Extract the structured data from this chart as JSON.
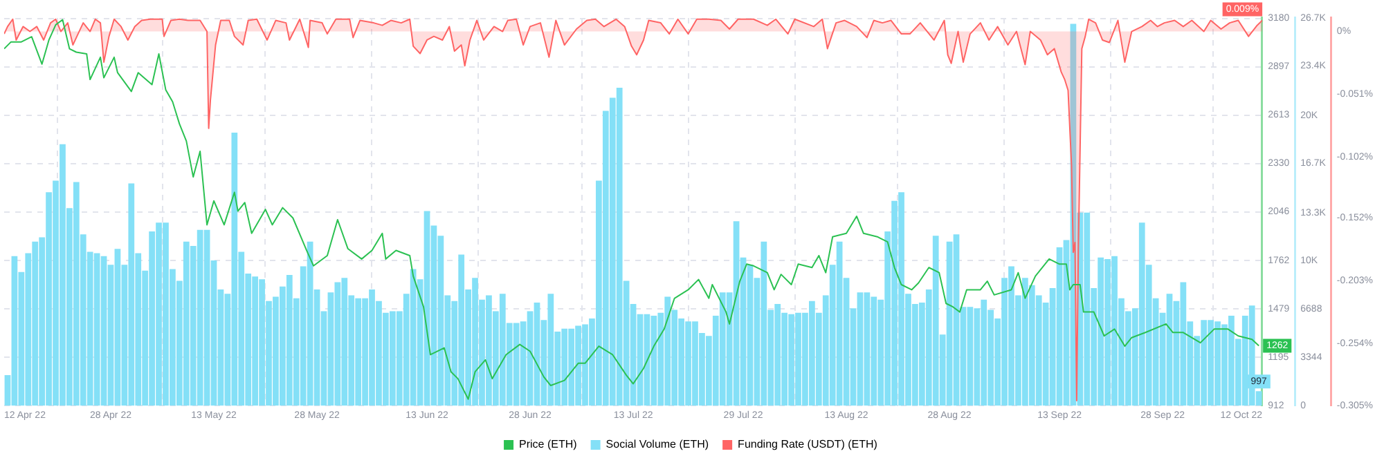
{
  "chart_data": {
    "type": "bar",
    "x": [
      "2022-04-13",
      "2022-04-14",
      "2022-04-15",
      "2022-04-16",
      "2022-04-17",
      "2022-04-18",
      "2022-04-19",
      "2022-04-20",
      "2022-04-21",
      "2022-04-22",
      "2022-04-23",
      "2022-04-24",
      "2022-04-25",
      "2022-04-26",
      "2022-04-27",
      "2022-04-28",
      "2022-04-29",
      "2022-04-30",
      "2022-05-01",
      "2022-05-02",
      "2022-05-03",
      "2022-05-04",
      "2022-05-05",
      "2022-05-06",
      "2022-05-07",
      "2022-05-08",
      "2022-05-09",
      "2022-05-10",
      "2022-05-11",
      "2022-05-12",
      "2022-05-13",
      "2022-05-14",
      "2022-05-15",
      "2022-05-16",
      "2022-05-17",
      "2022-05-18",
      "2022-05-19",
      "2022-05-20",
      "2022-05-21",
      "2022-05-22",
      "2022-05-23",
      "2022-05-24",
      "2022-05-25",
      "2022-05-26",
      "2022-05-27",
      "2022-05-28",
      "2022-05-29",
      "2022-05-30",
      "2022-05-31",
      "2022-06-01",
      "2022-06-02",
      "2022-06-03",
      "2022-06-04",
      "2022-06-05",
      "2022-06-06",
      "2022-06-07",
      "2022-06-08",
      "2022-06-09",
      "2022-06-10",
      "2022-06-11",
      "2022-06-12",
      "2022-06-13",
      "2022-06-14",
      "2022-06-15",
      "2022-06-16",
      "2022-06-17",
      "2022-06-18",
      "2022-06-19",
      "2022-06-20",
      "2022-06-21",
      "2022-06-22",
      "2022-06-23",
      "2022-06-24",
      "2022-06-25",
      "2022-06-26",
      "2022-06-27",
      "2022-06-28",
      "2022-06-29",
      "2022-06-30",
      "2022-07-01",
      "2022-07-02",
      "2022-07-03",
      "2022-07-04",
      "2022-07-05",
      "2022-07-06",
      "2022-07-07",
      "2022-07-08",
      "2022-07-09",
      "2022-07-10",
      "2022-07-11",
      "2022-07-12",
      "2022-07-13",
      "2022-07-14",
      "2022-07-15",
      "2022-07-16",
      "2022-07-17",
      "2022-07-18",
      "2022-07-19",
      "2022-07-20",
      "2022-07-21",
      "2022-07-22",
      "2022-07-23",
      "2022-07-24",
      "2022-07-25",
      "2022-07-26",
      "2022-07-27",
      "2022-07-28",
      "2022-07-29",
      "2022-07-30",
      "2022-07-31",
      "2022-08-01",
      "2022-08-02",
      "2022-08-03",
      "2022-08-04",
      "2022-08-05",
      "2022-08-06",
      "2022-08-07",
      "2022-08-08",
      "2022-08-09",
      "2022-08-10",
      "2022-08-11",
      "2022-08-12",
      "2022-08-13",
      "2022-08-14",
      "2022-08-15",
      "2022-08-16",
      "2022-08-17",
      "2022-08-18",
      "2022-08-19",
      "2022-08-20",
      "2022-08-21",
      "2022-08-22",
      "2022-08-23",
      "2022-08-24",
      "2022-08-25",
      "2022-08-26",
      "2022-08-27",
      "2022-08-28",
      "2022-08-29",
      "2022-08-30",
      "2022-08-31",
      "2022-09-01",
      "2022-09-02",
      "2022-09-03",
      "2022-09-04",
      "2022-09-05",
      "2022-09-06",
      "2022-09-07",
      "2022-09-08",
      "2022-09-09",
      "2022-09-10",
      "2022-09-11",
      "2022-09-12",
      "2022-09-13",
      "2022-09-14",
      "2022-09-15",
      "2022-09-16",
      "2022-09-17",
      "2022-09-18",
      "2022-09-19",
      "2022-09-20",
      "2022-09-21",
      "2022-09-22",
      "2022-09-23",
      "2022-09-24",
      "2022-09-25",
      "2022-09-26",
      "2022-09-27",
      "2022-09-28",
      "2022-09-29",
      "2022-09-30",
      "2022-10-01",
      "2022-10-02",
      "2022-10-03",
      "2022-10-04",
      "2022-10-05",
      "2022-10-06",
      "2022-10-07",
      "2022-10-08",
      "2022-10-09",
      "2022-10-10",
      "2022-10-11",
      "2022-10-12"
    ],
    "series": [
      {
        "name": "Price (ETH)",
        "type": "line",
        "color": "#2bc152",
        "x": [
          "2022-04-12T12:00",
          "2022-04-13T12:00",
          "2022-04-15",
          "2022-04-16T12:00",
          "2022-04-18",
          "2022-04-19",
          "2022-04-20",
          "2022-04-21",
          "2022-04-22",
          "2022-04-23",
          "2022-04-24T12:00",
          "2022-04-25",
          "2022-04-26T12:00",
          "2022-04-27",
          "2022-04-28T12:00",
          "2022-04-29",
          "2022-05-01",
          "2022-05-02",
          "2022-05-04",
          "2022-05-05",
          "2022-05-06",
          "2022-05-07",
          "2022-05-08",
          "2022-05-09",
          "2022-05-10",
          "2022-05-11",
          "2022-05-12",
          "2022-05-13",
          "2022-05-14T12:00",
          "2022-05-16",
          "2022-05-16T12:00",
          "2022-05-17T12:00",
          "2022-05-18T12:00",
          "2022-05-20T12:00",
          "2022-05-21T12:00",
          "2022-05-23",
          "2022-05-24T12:00",
          "2022-05-26T12:00",
          "2022-05-27T12:00",
          "2022-05-29T12:00",
          "2022-05-31",
          "2022-06-01T12:00",
          "2022-06-03T12:00",
          "2022-06-05",
          "2022-06-06T12:00",
          "2022-06-07",
          "2022-06-08T12:00",
          "2022-06-10T12:00",
          "2022-06-11",
          "2022-06-12T12:00",
          "2022-06-13T12:00",
          "2022-06-15T12:00",
          "2022-06-16T12:00",
          "2022-06-17T12:00",
          "2022-06-19",
          "2022-06-20",
          "2022-06-21T12:00",
          "2022-06-22T12:00",
          "2022-06-24T12:00",
          "2022-06-26T12:00",
          "2022-06-28",
          "2022-06-30",
          "2022-07-01",
          "2022-07-03",
          "2022-07-05",
          "2022-07-06",
          "2022-07-08",
          "2022-07-10",
          "2022-07-12",
          "2022-07-13",
          "2022-07-14T12:00",
          "2022-07-16",
          "2022-07-17T12:00",
          "2022-07-19",
          "2022-07-21",
          "2022-07-22T12:00",
          "2022-07-24",
          "2022-07-24T12:00",
          "2022-07-26T12:00",
          "2022-07-27",
          "2022-07-28T12:00",
          "2022-07-29T12:00",
          "2022-07-30T12:00",
          "2022-08-01T12:00",
          "2022-08-02T12:00",
          "2022-08-03T12:00",
          "2022-08-05",
          "2022-08-06",
          "2022-08-08",
          "2022-08-09",
          "2022-08-10",
          "2022-08-11",
          "2022-08-13",
          "2022-08-14T12:00",
          "2022-08-15T12:00",
          "2022-08-17T12:00",
          "2022-08-19",
          "2022-08-20",
          "2022-08-21",
          "2022-08-22T12:00",
          "2022-08-23T12:00",
          "2022-08-25",
          "2022-08-26T12:00",
          "2022-08-27T12:00",
          "2022-08-28T12:00",
          "2022-08-29T12:00",
          "2022-08-30T12:00",
          "2022-09-01T12:00",
          "2022-09-02T12:00",
          "2022-09-03T12:00",
          "2022-09-06",
          "2022-09-07",
          "2022-09-08",
          "2022-09-09T12:00",
          "2022-09-11T12:00",
          "2022-09-13",
          "2022-09-14",
          "2022-09-14T12:00",
          "2022-09-15",
          "2022-09-16",
          "2022-09-16T12:00",
          "2022-09-18",
          "2022-09-19T12:00",
          "2022-09-21",
          "2022-09-22T12:00",
          "2022-09-23T12:00",
          "2022-09-25T12:00",
          "2022-09-28T12:00",
          "2022-09-29T12:00",
          "2022-10-01",
          "2022-10-03T12:00",
          "2022-10-05T12:00",
          "2022-10-07T12:00",
          "2022-10-09",
          "2022-10-11",
          "2022-10-12"
        ],
        "values": [
          3000,
          3040,
          3040,
          3070,
          2910,
          3050,
          3140,
          3170,
          3000,
          2980,
          2970,
          2820,
          2950,
          2830,
          2950,
          2860,
          2750,
          2860,
          2790,
          2970,
          2760,
          2690,
          2560,
          2460,
          2250,
          2400,
          1970,
          2110,
          1970,
          2160,
          2050,
          2100,
          1920,
          2060,
          1970,
          2070,
          2010,
          1820,
          1730,
          1790,
          2000,
          1830,
          1770,
          1820,
          1920,
          1770,
          1820,
          1790,
          1670,
          1490,
          1210,
          1250,
          1110,
          1070,
          950,
          1110,
          1180,
          1070,
          1210,
          1270,
          1230,
          1080,
          1030,
          1060,
          1160,
          1160,
          1260,
          1210,
          1090,
          1040,
          1130,
          1260,
          1360,
          1540,
          1590,
          1650,
          1540,
          1620,
          1460,
          1390,
          1640,
          1740,
          1730,
          1690,
          1590,
          1680,
          1620,
          1740,
          1720,
          1790,
          1690,
          1900,
          1920,
          2020,
          1920,
          1900,
          1870,
          1720,
          1620,
          1590,
          1630,
          1720,
          1690,
          1510,
          1490,
          1460,
          1590,
          1590,
          1640,
          1560,
          1590,
          1690,
          1540,
          1670,
          1770,
          1740,
          1740,
          1590,
          1620,
          1620,
          1460,
          1460,
          1320,
          1360,
          1260,
          1310,
          1340,
          1390,
          1340,
          1340,
          1280,
          1360,
          1360,
          1320,
          1300,
          1262
        ],
        "value_labels": [
          null,
          null,
          null,
          null,
          null,
          null,
          null,
          null,
          null,
          null,
          null,
          null,
          null,
          null,
          null,
          null,
          null,
          null,
          null,
          null,
          null,
          null,
          null,
          null,
          null,
          null,
          null,
          null,
          null,
          null,
          null,
          null,
          null,
          null,
          null,
          null,
          null,
          null,
          null,
          null,
          null,
          null,
          null,
          null,
          null,
          null,
          null,
          null,
          null,
          null,
          null,
          null,
          null,
          null,
          null,
          null,
          null,
          null,
          null,
          null,
          null,
          null,
          null,
          null,
          null,
          null,
          null,
          null,
          null,
          null,
          null,
          null,
          null,
          null,
          null,
          null,
          null,
          null,
          null,
          null,
          null,
          null,
          null,
          null,
          null,
          null,
          null,
          null,
          null,
          null,
          null,
          null,
          null,
          null,
          null,
          null,
          null,
          null,
          null,
          null,
          null,
          null,
          null,
          null,
          null,
          null,
          null,
          null,
          null,
          null,
          null,
          null,
          null,
          null,
          null,
          null,
          null,
          null,
          null,
          null,
          null,
          null,
          null,
          null,
          null,
          null,
          null,
          null,
          null,
          null,
          null,
          null,
          null,
          null,
          null,
          "1262"
        ]
      },
      {
        "name": "Social Volume (ETH)",
        "color": "#84e0f7",
        "axis": "y2",
        "values": [
          2100,
          10300,
          9200,
          10500,
          11300,
          11600,
          14700,
          15500,
          18000,
          13600,
          15400,
          11800,
          10600,
          10500,
          10300,
          9700,
          10800,
          9700,
          15300,
          10500,
          9300,
          12000,
          12600,
          12600,
          9400,
          8600,
          11300,
          11000,
          12100,
          12100,
          10000,
          8000,
          7700,
          18800,
          10600,
          9100,
          8900,
          8700,
          7200,
          7500,
          8200,
          9000,
          7400,
          9600,
          11300,
          8000,
          6500,
          7800,
          8500,
          8800,
          7600,
          7400,
          7400,
          8000,
          7200,
          6400,
          6500,
          6500,
          7700,
          9400,
          8700,
          13400,
          12400,
          11700,
          7600,
          7200,
          10400,
          8000,
          8800,
          7300,
          7600,
          6500,
          7700,
          5700,
          5700,
          5800,
          6500,
          7100,
          5900,
          7700,
          5100,
          5300,
          5300,
          5500,
          5600,
          6000,
          15500,
          20300,
          21200,
          21900,
          8600,
          7000,
          6300,
          6300,
          6200,
          6400,
          7500,
          6600,
          6000,
          5800,
          5800,
          5000,
          4800,
          6200,
          7800,
          7800,
          12700,
          10200,
          9700,
          8800,
          11300,
          6600,
          7000,
          6400,
          6300,
          6400,
          6400,
          7200,
          6400,
          7600,
          9700,
          11300,
          8800,
          6700,
          7800,
          7800,
          7500,
          7300,
          12000,
          14100,
          14700,
          7700,
          7000,
          7100,
          8000,
          11700,
          4900,
          11300,
          11800,
          6800,
          6800,
          6700,
          7300,
          6600,
          6000,
          8800,
          9600,
          7600,
          8800,
          8300,
          7600,
          7100,
          8100,
          10900,
          11400,
          26300,
          13300,
          13300,
          8100,
          10200,
          10100,
          10300,
          7400,
          6500,
          6700,
          12600,
          9700,
          7400,
          6400,
          7700,
          7200,
          8500,
          5800,
          4800,
          5900,
          5900,
          5800,
          5600,
          6200,
          4600,
          6200,
          6900,
          997
        ],
        "value_labels": [
          null,
          null,
          null,
          null,
          null,
          null,
          null,
          null,
          null,
          null,
          null,
          null,
          null,
          null,
          null,
          null,
          null,
          null,
          null,
          null,
          null,
          null,
          null,
          null,
          null,
          null,
          null,
          null,
          null,
          null,
          null,
          null,
          null,
          null,
          null,
          null,
          null,
          null,
          null,
          null,
          null,
          null,
          null,
          null,
          null,
          null,
          null,
          null,
          null,
          null,
          null,
          null,
          null,
          null,
          null,
          null,
          null,
          null,
          null,
          null,
          null,
          null,
          null,
          null,
          null,
          null,
          null,
          null,
          null,
          null,
          null,
          null,
          null,
          null,
          null,
          null,
          null,
          null,
          null,
          null,
          null,
          null,
          null,
          null,
          null,
          null,
          null,
          null,
          null,
          null,
          null,
          null,
          null,
          null,
          null,
          null,
          null,
          null,
          null,
          null,
          null,
          null,
          null,
          null,
          null,
          null,
          null,
          null,
          null,
          null,
          null,
          null,
          null,
          null,
          null,
          null,
          null,
          null,
          null,
          null,
          null,
          null,
          null,
          null,
          null,
          null,
          null,
          null,
          null,
          null,
          null,
          null,
          null,
          null,
          null,
          null,
          null,
          null,
          null,
          null,
          null,
          null,
          null,
          null,
          null,
          null,
          null,
          null,
          null,
          null,
          null,
          null,
          null,
          null,
          null,
          null,
          null,
          null,
          null,
          null,
          null,
          null,
          null,
          null,
          null,
          null,
          null,
          null,
          null,
          null,
          null,
          null,
          null,
          null,
          null,
          null,
          null,
          null,
          null,
          null,
          null,
          null,
          "997"
        ]
      },
      {
        "name": "Funding Rate (USDT) (ETH)",
        "type": "area",
        "color": "#ff6464",
        "axis": "y3",
        "x": [
          "2022-04-12T12:00",
          "2022-04-13T00:00",
          "2022-04-13T18:00",
          "2022-04-14T06:00",
          "2022-04-15T06:00",
          "2022-04-16T06:00",
          "2022-04-17T06:00",
          "2022-04-18T06:00",
          "2022-04-19T06:00",
          "2022-04-20T00:00",
          "2022-04-20T18:00",
          "2022-04-21T18:00",
          "2022-04-22T12:00",
          "2022-04-23T00:00",
          "2022-04-24T00:00",
          "2022-04-25T00:00",
          "2022-04-25T18:00",
          "2022-04-26T12:00",
          "2022-04-27T00:00",
          "2022-04-27T18:00",
          "2022-04-28T12:00",
          "2022-04-29T12:00",
          "2022-04-30T12:00",
          "2022-05-01T12:00",
          "2022-05-02T12:00",
          "2022-05-03T18:00",
          "2022-05-05T12:00",
          "2022-05-05T18:00",
          "2022-05-06T18:00",
          "2022-05-08T00:00",
          "2022-05-09T06:00",
          "2022-05-11T00:00",
          "2022-05-12T00:00",
          "2022-05-12T06:00",
          "2022-05-12T12:00",
          "2022-05-13T06:00",
          "2022-05-14T00:00",
          "2022-05-15T06:00",
          "2022-05-16T00:00",
          "2022-05-17T06:00",
          "2022-05-18T00:00",
          "2022-05-19T06:00",
          "2022-05-20T18:00",
          "2022-05-22T00:00",
          "2022-05-23T12:00",
          "2022-05-24T00:00",
          "2022-05-25T12:00",
          "2022-05-26T18:00",
          "2022-05-27T00:00",
          "2022-05-28T18:00",
          "2022-05-29T12:00",
          "2022-05-30T18:00",
          "2022-06-01T18:00",
          "2022-06-02T06:00",
          "2022-06-03T06:00",
          "2022-06-05T06:00",
          "2022-06-06T12:00",
          "2022-06-07T18:00",
          "2022-06-09T06:00",
          "2022-06-10T12:00",
          "2022-06-11T00:00",
          "2022-06-12T00:00",
          "2022-06-13T00:00",
          "2022-06-14T00:00",
          "2022-06-15T06:00",
          "2022-06-16T06:00",
          "2022-06-17T00:00",
          "2022-06-18T00:00",
          "2022-06-18T12:00",
          "2022-06-19T06:00",
          "2022-06-20T06:00",
          "2022-06-21T06:00",
          "2022-06-22T18:00",
          "2022-06-24T00:00",
          "2022-06-24T18:00",
          "2022-06-26T00:00",
          "2022-06-27T00:00",
          "2022-06-28T00:00",
          "2022-06-29T12:00",
          "2022-06-30T18:00",
          "2022-07-01T18:00",
          "2022-07-03T00:00",
          "2022-07-04T18:00",
          "2022-07-06T06:00",
          "2022-07-07T12:00",
          "2022-07-08T18:00",
          "2022-07-10T12:00",
          "2022-07-11T18:00",
          "2022-07-12T18:00",
          "2022-07-13T12:00",
          "2022-07-14T12:00",
          "2022-07-15T06:00",
          "2022-07-17T00:00",
          "2022-07-18T06:00",
          "2022-07-19T12:00",
          "2022-07-21T00:00",
          "2022-07-22T06:00",
          "2022-07-24T00:00",
          "2022-07-25T18:00",
          "2022-07-27T00:00",
          "2022-07-28T06:00",
          "2022-07-30T12:00",
          "2022-08-01T12:00",
          "2022-08-02T18:00",
          "2022-08-04T12:00",
          "2022-08-05T12:00",
          "2022-08-08T06:00",
          "2022-08-09T12:00",
          "2022-08-10T06:00",
          "2022-08-11T12:00",
          "2022-08-12T18:00",
          "2022-08-14T12:00",
          "2022-08-16T00:00",
          "2022-08-17T00:00",
          "2022-08-18T06:00",
          "2022-08-19T12:00",
          "2022-08-21T00:00",
          "2022-08-22T06:00",
          "2022-08-23T18:00",
          "2022-08-25T18:00",
          "2022-08-27T06:00",
          "2022-08-27T18:00",
          "2022-08-28T06:00",
          "2022-08-29T06:00",
          "2022-08-30T00:00",
          "2022-08-31T00:00",
          "2022-09-01T12:00",
          "2022-09-02T18:00",
          "2022-09-04T00:00",
          "2022-09-05T12:00",
          "2022-09-06T18:00",
          "2022-09-08T00:00",
          "2022-09-08T18:00",
          "2022-09-10T06:00",
          "2022-09-11T06:00",
          "2022-09-12T06:00",
          "2022-09-13T06:00",
          "2022-09-13T18:00",
          "2022-09-14T06:00",
          "2022-09-14T18:00",
          "2022-09-15T00:00",
          "2022-09-15T06:00",
          "2022-09-15T12:00",
          "2022-09-15T18:00",
          "2022-09-16T06:00",
          "2022-09-16T18:00",
          "2022-09-17T06:00",
          "2022-09-18T06:00",
          "2022-09-19T06:00",
          "2022-09-20T06:00",
          "2022-09-21T12:00",
          "2022-09-22T12:00",
          "2022-09-23T12:00",
          "2022-09-25T00:00",
          "2022-09-26T06:00",
          "2022-09-27T06:00",
          "2022-09-28T06:00",
          "2022-09-29T18:00",
          "2022-10-01T00:00",
          "2022-10-02T06:00",
          "2022-10-04T00:00",
          "2022-10-05T00:00",
          "2022-10-06T12:00",
          "2022-10-07T18:00",
          "2022-10-09T00:00",
          "2022-10-10T12:00",
          "2022-10-11T18:00",
          "2022-10-12T12:00"
        ],
        "values": [
          -0.002,
          0.004,
          0.01,
          -0.007,
          0.004,
          0,
          0.004,
          -0.007,
          0.007,
          0.01,
          0,
          0.007,
          -0.011,
          -0.005,
          0.007,
          0,
          0.01,
          0.007,
          -0.025,
          -0.004,
          0.01,
          0.004,
          -0.007,
          0.004,
          0.009,
          0.01,
          0.01,
          -0.004,
          0.009,
          0.01,
          0.009,
          0.009,
          0,
          -0.079,
          -0.056,
          -0.011,
          0.009,
          0.009,
          -0.004,
          -0.011,
          0.009,
          0.01,
          -0.007,
          0.009,
          0.007,
          -0.007,
          0.01,
          -0.013,
          0.009,
          0.007,
          -0.002,
          0.01,
          0.01,
          -0.005,
          0.009,
          0.007,
          0.005,
          0.009,
          0.007,
          0.01,
          -0.012,
          -0.018,
          -0.007,
          -0.004,
          -0.007,
          0.004,
          -0.016,
          -0.011,
          -0.028,
          -0.007,
          0.009,
          -0.007,
          0.004,
          0,
          0.009,
          0.01,
          -0.011,
          0.004,
          0.007,
          -0.021,
          0.009,
          -0.011,
          0.002,
          0.009,
          0.01,
          0.004,
          0.01,
          0.004,
          -0.012,
          -0.019,
          -0.007,
          0.009,
          0.007,
          -0.002,
          0.01,
          -0.002,
          0.01,
          0.01,
          0.009,
          0.002,
          0.01,
          0.01,
          0.005,
          0.01,
          -0.002,
          0.01,
          0.004,
          0.01,
          -0.014,
          0.007,
          0.009,
          0.004,
          -0.005,
          0.009,
          0.007,
          0.009,
          -0.002,
          -0.002,
          0.007,
          -0.007,
          0.009,
          -0.019,
          -0.026,
          0,
          -0.025,
          -0.002,
          0.007,
          -0.007,
          0.004,
          -0.011,
          0,
          -0.027,
          0,
          -0.007,
          -0.019,
          -0.014,
          -0.033,
          -0.039,
          -0.048,
          -0.109,
          -0.18,
          -0.172,
          -0.301,
          -0.176,
          -0.014,
          -0.004,
          0.01,
          0.007,
          -0.007,
          -0.009,
          0.009,
          -0.025,
          0,
          0.004,
          0.009,
          0.004,
          0.007,
          0.009,
          0.004,
          0.009,
          0,
          0.009,
          0.002,
          0.007,
          0.009,
          -0.004,
          0.005,
          0.009
        ],
        "value_labels": [
          null,
          null,
          null,
          null,
          null,
          null,
          null,
          null,
          null,
          null,
          null,
          null,
          null,
          null,
          null,
          null,
          null,
          null,
          null,
          null,
          null,
          null,
          null,
          null,
          null,
          null,
          null,
          null,
          null,
          null,
          null,
          null,
          null,
          null,
          null,
          null,
          null,
          null,
          null,
          null,
          null,
          null,
          null,
          null,
          null,
          null,
          null,
          null,
          null,
          null,
          null,
          null,
          null,
          null,
          null,
          null,
          null,
          null,
          null,
          null,
          null,
          null,
          null,
          null,
          null,
          null,
          null,
          null,
          null,
          null,
          null,
          null,
          null,
          null,
          null,
          null,
          null,
          null,
          null,
          null,
          null,
          null,
          null,
          null,
          null,
          null,
          null,
          null,
          null,
          null,
          null,
          null,
          null,
          null,
          null,
          null,
          null,
          null,
          null,
          null,
          null,
          null,
          null,
          null,
          null,
          null,
          null,
          null,
          null,
          null,
          null,
          null,
          null,
          null,
          null,
          null,
          null,
          null,
          null,
          null,
          null,
          null,
          null,
          null,
          null,
          null,
          null,
          null,
          null,
          null,
          null,
          null,
          null,
          null,
          null,
          null,
          null,
          null,
          null,
          null,
          null,
          null,
          null,
          null,
          null,
          null,
          null,
          null,
          null,
          null,
          null,
          null,
          null,
          null,
          null,
          null,
          null,
          null,
          null,
          null,
          null,
          null,
          null,
          null,
          null,
          null,
          null,
          "0.009%"
        ]
      }
    ],
    "xlim": [
      "2022-04-12T12:00",
      "2022-10-12T12:00"
    ],
    "xticks": [
      {
        "value": "2022-04-12T12:00",
        "label": "12 Apr 22"
      },
      {
        "value": "2022-04-28",
        "label": "28 Apr 22"
      },
      {
        "value": "2022-05-13",
        "label": "13 May 22"
      },
      {
        "value": "2022-05-28",
        "label": "28 May 22"
      },
      {
        "value": "2022-06-13",
        "label": "13 Jun 22"
      },
      {
        "value": "2022-06-28",
        "label": "28 Jun 22"
      },
      {
        "value": "2022-07-13",
        "label": "13 Jul 22"
      },
      {
        "value": "2022-07-29",
        "label": "29 Jul 22"
      },
      {
        "value": "2022-08-13",
        "label": "13 Aug 22"
      },
      {
        "value": "2022-08-28",
        "label": "28 Aug 22"
      },
      {
        "value": "2022-09-13",
        "label": "13 Sep 22"
      },
      {
        "value": "2022-09-28",
        "label": "28 Sep 22"
      },
      {
        "value": "2022-10-12T12:00",
        "label": "12 Oct 22"
      }
    ],
    "ylim": [
      912,
      3180
    ],
    "yticks": [
      912,
      1195,
      1479,
      1762,
      2046,
      2330,
      2613,
      2897,
      3180
    ],
    "y2lim": [
      0,
      26700
    ],
    "y2ticks": [
      0,
      3344,
      6688,
      {
        "value": 10000,
        "label": "10K"
      },
      {
        "value": 13300,
        "label": "13.3K"
      },
      {
        "value": 16700,
        "label": "16.7K"
      },
      {
        "value": 20000,
        "label": "20K"
      },
      {
        "value": 23400,
        "label": "23.4K"
      },
      {
        "value": 26700,
        "label": "26.7K"
      }
    ],
    "y3lim": [
      -0.305,
      0.011
    ],
    "y3ticks": [
      {
        "value": 0,
        "label": "0%"
      },
      {
        "value": -0.051,
        "label": "-0.051%"
      },
      {
        "value": -0.102,
        "label": "-0.102%"
      },
      {
        "value": -0.152,
        "label": "-0.152%"
      },
      {
        "value": -0.203,
        "label": "-0.203%"
      },
      {
        "value": -0.254,
        "label": "-0.254%"
      },
      {
        "value": -0.305,
        "label": "-0.305%"
      }
    ],
    "grid": true,
    "legend": "bottom"
  }
}
